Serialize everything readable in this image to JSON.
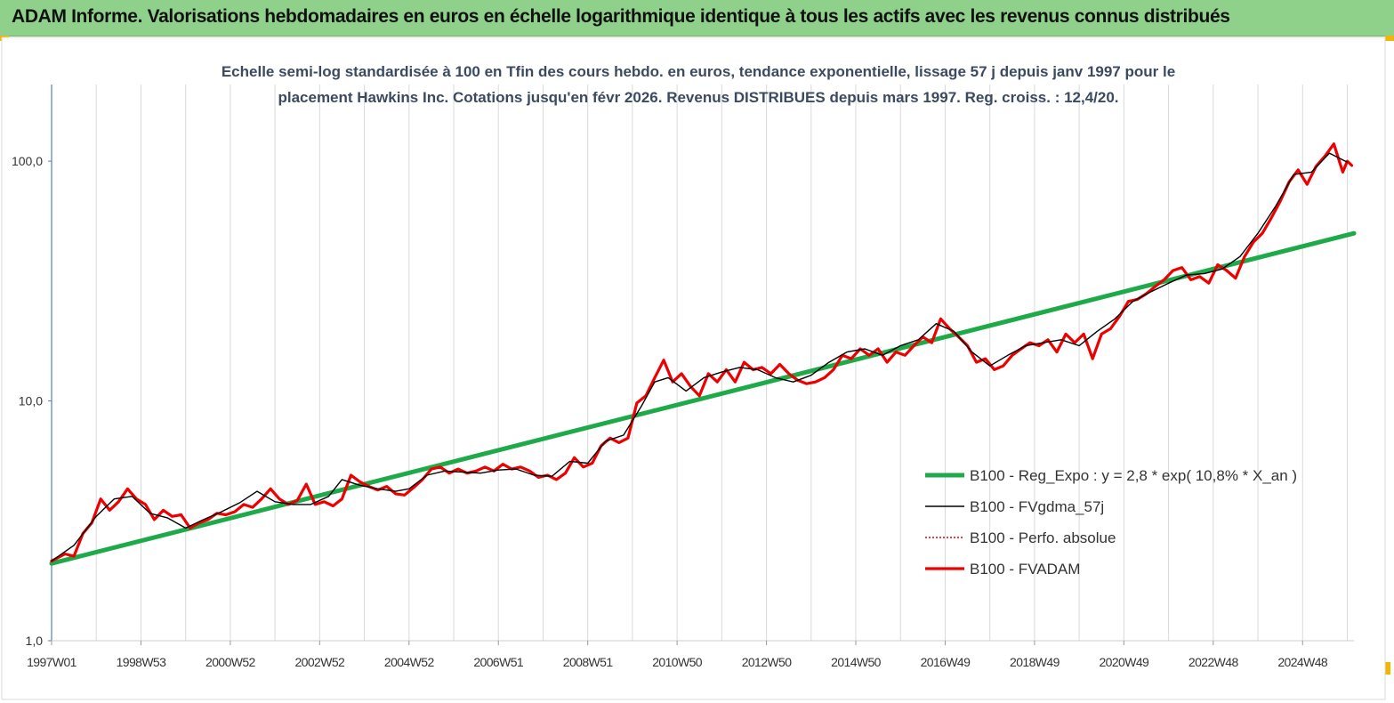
{
  "header": {
    "title": "ADAM Informe. Valorisations hebdomadaires en euros en échelle logarithmique identique à tous les actifs avec les revenus connus distribués"
  },
  "chart_data": {
    "type": "line",
    "title_line1": "Echelle semi-log standardisée à 100 en Tfin des cours hebdo. en euros, tendance exponentielle, lissage 57 j depuis janv 1997 pour le",
    "title_line2": "placement Hawkins Inc. Cotations jusqu'en févr 2026. Revenus DISTRIBUES depuis mars 1997. Reg. croiss. : 12,4/20.",
    "y_scale": "log",
    "ylim": [
      1,
      200
    ],
    "y_ticks": [
      {
        "value": 1,
        "label": "1,0"
      },
      {
        "value": 10,
        "label": "10,0"
      },
      {
        "value": 100,
        "label": "100,0"
      }
    ],
    "xlim": [
      1997.0,
      2026.15
    ],
    "x_ticks": [
      {
        "value": 1997.0,
        "label": "1997W01"
      },
      {
        "value": 1999.0,
        "label": "1998W53"
      },
      {
        "value": 2001.0,
        "label": "2000W52"
      },
      {
        "value": 2003.0,
        "label": "2002W52"
      },
      {
        "value": 2005.0,
        "label": "2004W52"
      },
      {
        "value": 2007.0,
        "label": "2006W51"
      },
      {
        "value": 2009.0,
        "label": "2008W51"
      },
      {
        "value": 2011.0,
        "label": "2010W50"
      },
      {
        "value": 2013.0,
        "label": "2012W50"
      },
      {
        "value": 2015.0,
        "label": "2014W50"
      },
      {
        "value": 2017.0,
        "label": "2016W49"
      },
      {
        "value": 2019.0,
        "label": "2018W49"
      },
      {
        "value": 2021.0,
        "label": "2020W49"
      },
      {
        "value": 2023.0,
        "label": "2022W48"
      },
      {
        "value": 2025.0,
        "label": "2024W48"
      }
    ],
    "grid": {
      "vertical": true,
      "horizontal": false
    },
    "legend_position": "bottom-right",
    "series": [
      {
        "name": "B100 - Reg_Expo : y = 2,8 * exp( 10,8% *  X_an )",
        "color": "#1faa4a",
        "style": "thick",
        "x": [
          1997.0,
          2026.15
        ],
        "values": [
          2.1,
          50
        ]
      },
      {
        "name": "B100 - FVgdma_57j",
        "color": "#000000",
        "style": "thin",
        "x": [
          1997.0,
          1997.5,
          1998.0,
          1998.4,
          1998.8,
          1999.2,
          1999.6,
          2000.0,
          2000.4,
          2000.8,
          2001.2,
          2001.6,
          2002.0,
          2002.4,
          2002.8,
          2003.2,
          2003.5,
          2003.9,
          2004.3,
          2004.7,
          2005.0,
          2005.4,
          2005.8,
          2006.2,
          2006.6,
          2007.0,
          2007.4,
          2007.8,
          2008.2,
          2008.6,
          2009.0,
          2009.4,
          2009.8,
          2010.2,
          2010.5,
          2010.8,
          2011.2,
          2011.6,
          2012.0,
          2012.4,
          2012.8,
          2013.2,
          2013.6,
          2014.0,
          2014.4,
          2014.8,
          2015.2,
          2015.6,
          2016.0,
          2016.4,
          2016.8,
          2017.2,
          2017.6,
          2018.0,
          2018.4,
          2018.8,
          2019.2,
          2019.6,
          2020.0,
          2020.4,
          2020.8,
          2021.2,
          2021.6,
          2022.0,
          2022.4,
          2022.8,
          2023.2,
          2023.6,
          2024.0,
          2024.4,
          2024.8,
          2025.2,
          2025.6,
          2026.0
        ],
        "values": [
          2.15,
          2.5,
          3.3,
          3.9,
          4.0,
          3.4,
          3.25,
          2.95,
          3.2,
          3.45,
          3.75,
          4.2,
          3.8,
          3.7,
          3.7,
          4.0,
          4.7,
          4.45,
          4.3,
          4.2,
          4.3,
          4.9,
          5.1,
          5.05,
          5.0,
          5.15,
          5.2,
          4.9,
          4.85,
          5.6,
          5.5,
          6.8,
          7.2,
          9.5,
          12.0,
          12.5,
          11.0,
          12.5,
          13.2,
          13.8,
          13.5,
          12.5,
          12.0,
          12.8,
          14.5,
          16.0,
          16.5,
          15.5,
          17.0,
          18.0,
          21.0,
          19.5,
          16.0,
          14.0,
          15.5,
          17.0,
          17.5,
          18.0,
          17.0,
          19.5,
          22.0,
          26.0,
          28.5,
          31.0,
          33.5,
          34.0,
          35.5,
          40.0,
          50.0,
          65.0,
          88.0,
          90.0,
          108.0,
          99.0
        ]
      },
      {
        "name": "B100 - Perfo. absolue",
        "color": "#e60000",
        "style": "dotted"
      },
      {
        "name": "B100 - FVADAM",
        "color": "#ee0000",
        "style": "thick",
        "x": [
          1997.0,
          1997.3,
          1997.5,
          1997.7,
          1997.9,
          1998.1,
          1998.3,
          1998.5,
          1998.7,
          1998.9,
          1999.1,
          1999.3,
          1999.5,
          1999.7,
          1999.9,
          2000.1,
          2000.3,
          2000.5,
          2000.7,
          2000.9,
          2001.1,
          2001.3,
          2001.5,
          2001.7,
          2001.9,
          2002.1,
          2002.3,
          2002.5,
          2002.7,
          2002.9,
          2003.1,
          2003.3,
          2003.5,
          2003.7,
          2003.9,
          2004.1,
          2004.3,
          2004.5,
          2004.7,
          2004.9,
          2005.1,
          2005.3,
          2005.5,
          2005.7,
          2005.9,
          2006.1,
          2006.3,
          2006.5,
          2006.7,
          2006.9,
          2007.1,
          2007.3,
          2007.5,
          2007.7,
          2007.9,
          2008.1,
          2008.3,
          2008.5,
          2008.7,
          2008.9,
          2009.1,
          2009.3,
          2009.5,
          2009.7,
          2009.9,
          2010.1,
          2010.3,
          2010.5,
          2010.7,
          2010.9,
          2011.1,
          2011.3,
          2011.5,
          2011.7,
          2011.9,
          2012.1,
          2012.3,
          2012.5,
          2012.7,
          2012.9,
          2013.1,
          2013.3,
          2013.5,
          2013.7,
          2013.9,
          2014.1,
          2014.3,
          2014.5,
          2014.7,
          2014.9,
          2015.1,
          2015.3,
          2015.5,
          2015.7,
          2015.9,
          2016.1,
          2016.3,
          2016.5,
          2016.7,
          2016.9,
          2017.1,
          2017.3,
          2017.5,
          2017.7,
          2017.9,
          2018.1,
          2018.3,
          2018.5,
          2018.7,
          2018.9,
          2019.1,
          2019.3,
          2019.5,
          2019.7,
          2019.9,
          2020.1,
          2020.3,
          2020.5,
          2020.7,
          2020.9,
          2021.1,
          2021.3,
          2021.5,
          2021.7,
          2021.9,
          2022.1,
          2022.3,
          2022.5,
          2022.7,
          2022.9,
          2023.1,
          2023.3,
          2023.5,
          2023.7,
          2023.9,
          2024.1,
          2024.3,
          2024.5,
          2024.7,
          2024.9,
          2025.1,
          2025.3,
          2025.5,
          2025.7,
          2025.9,
          2026.0,
          2026.1
        ],
        "values": [
          2.15,
          2.3,
          2.25,
          2.8,
          3.1,
          3.9,
          3.5,
          3.8,
          4.3,
          3.9,
          3.7,
          3.2,
          3.5,
          3.3,
          3.35,
          2.95,
          3.1,
          3.2,
          3.4,
          3.35,
          3.45,
          3.7,
          3.6,
          3.9,
          4.3,
          3.9,
          3.7,
          3.85,
          4.5,
          3.7,
          3.8,
          3.65,
          3.9,
          4.9,
          4.6,
          4.4,
          4.25,
          4.4,
          4.1,
          4.05,
          4.35,
          4.7,
          5.2,
          5.3,
          5.0,
          5.2,
          5.0,
          5.1,
          5.3,
          5.1,
          5.45,
          5.2,
          5.3,
          5.1,
          4.8,
          4.9,
          4.7,
          5.0,
          5.8,
          5.3,
          5.5,
          6.5,
          7.0,
          6.7,
          7.0,
          9.8,
          10.5,
          12.5,
          14.8,
          12.0,
          13.0,
          11.5,
          10.5,
          13.0,
          12.0,
          13.5,
          12.0,
          14.5,
          13.5,
          13.8,
          13.0,
          14.2,
          13.0,
          12.2,
          11.8,
          12.0,
          12.5,
          13.5,
          15.5,
          15.0,
          16.5,
          15.5,
          16.5,
          14.5,
          16.0,
          15.5,
          17.0,
          18.5,
          17.5,
          22.0,
          20.0,
          18.5,
          17.0,
          14.5,
          15.0,
          13.5,
          14.0,
          15.5,
          16.5,
          17.5,
          17.0,
          18.0,
          16.0,
          19.0,
          17.5,
          19.0,
          15.0,
          19.0,
          20.0,
          22.5,
          26.0,
          26.5,
          28.0,
          30.0,
          32.0,
          35.0,
          36.0,
          32.0,
          33.0,
          31.0,
          37.0,
          35.0,
          32.5,
          40.0,
          46.0,
          50.0,
          58.0,
          68.0,
          82.0,
          92.0,
          80.0,
          95.0,
          105.0,
          118.0,
          90.0,
          100.0,
          96.0
        ]
      }
    ]
  }
}
